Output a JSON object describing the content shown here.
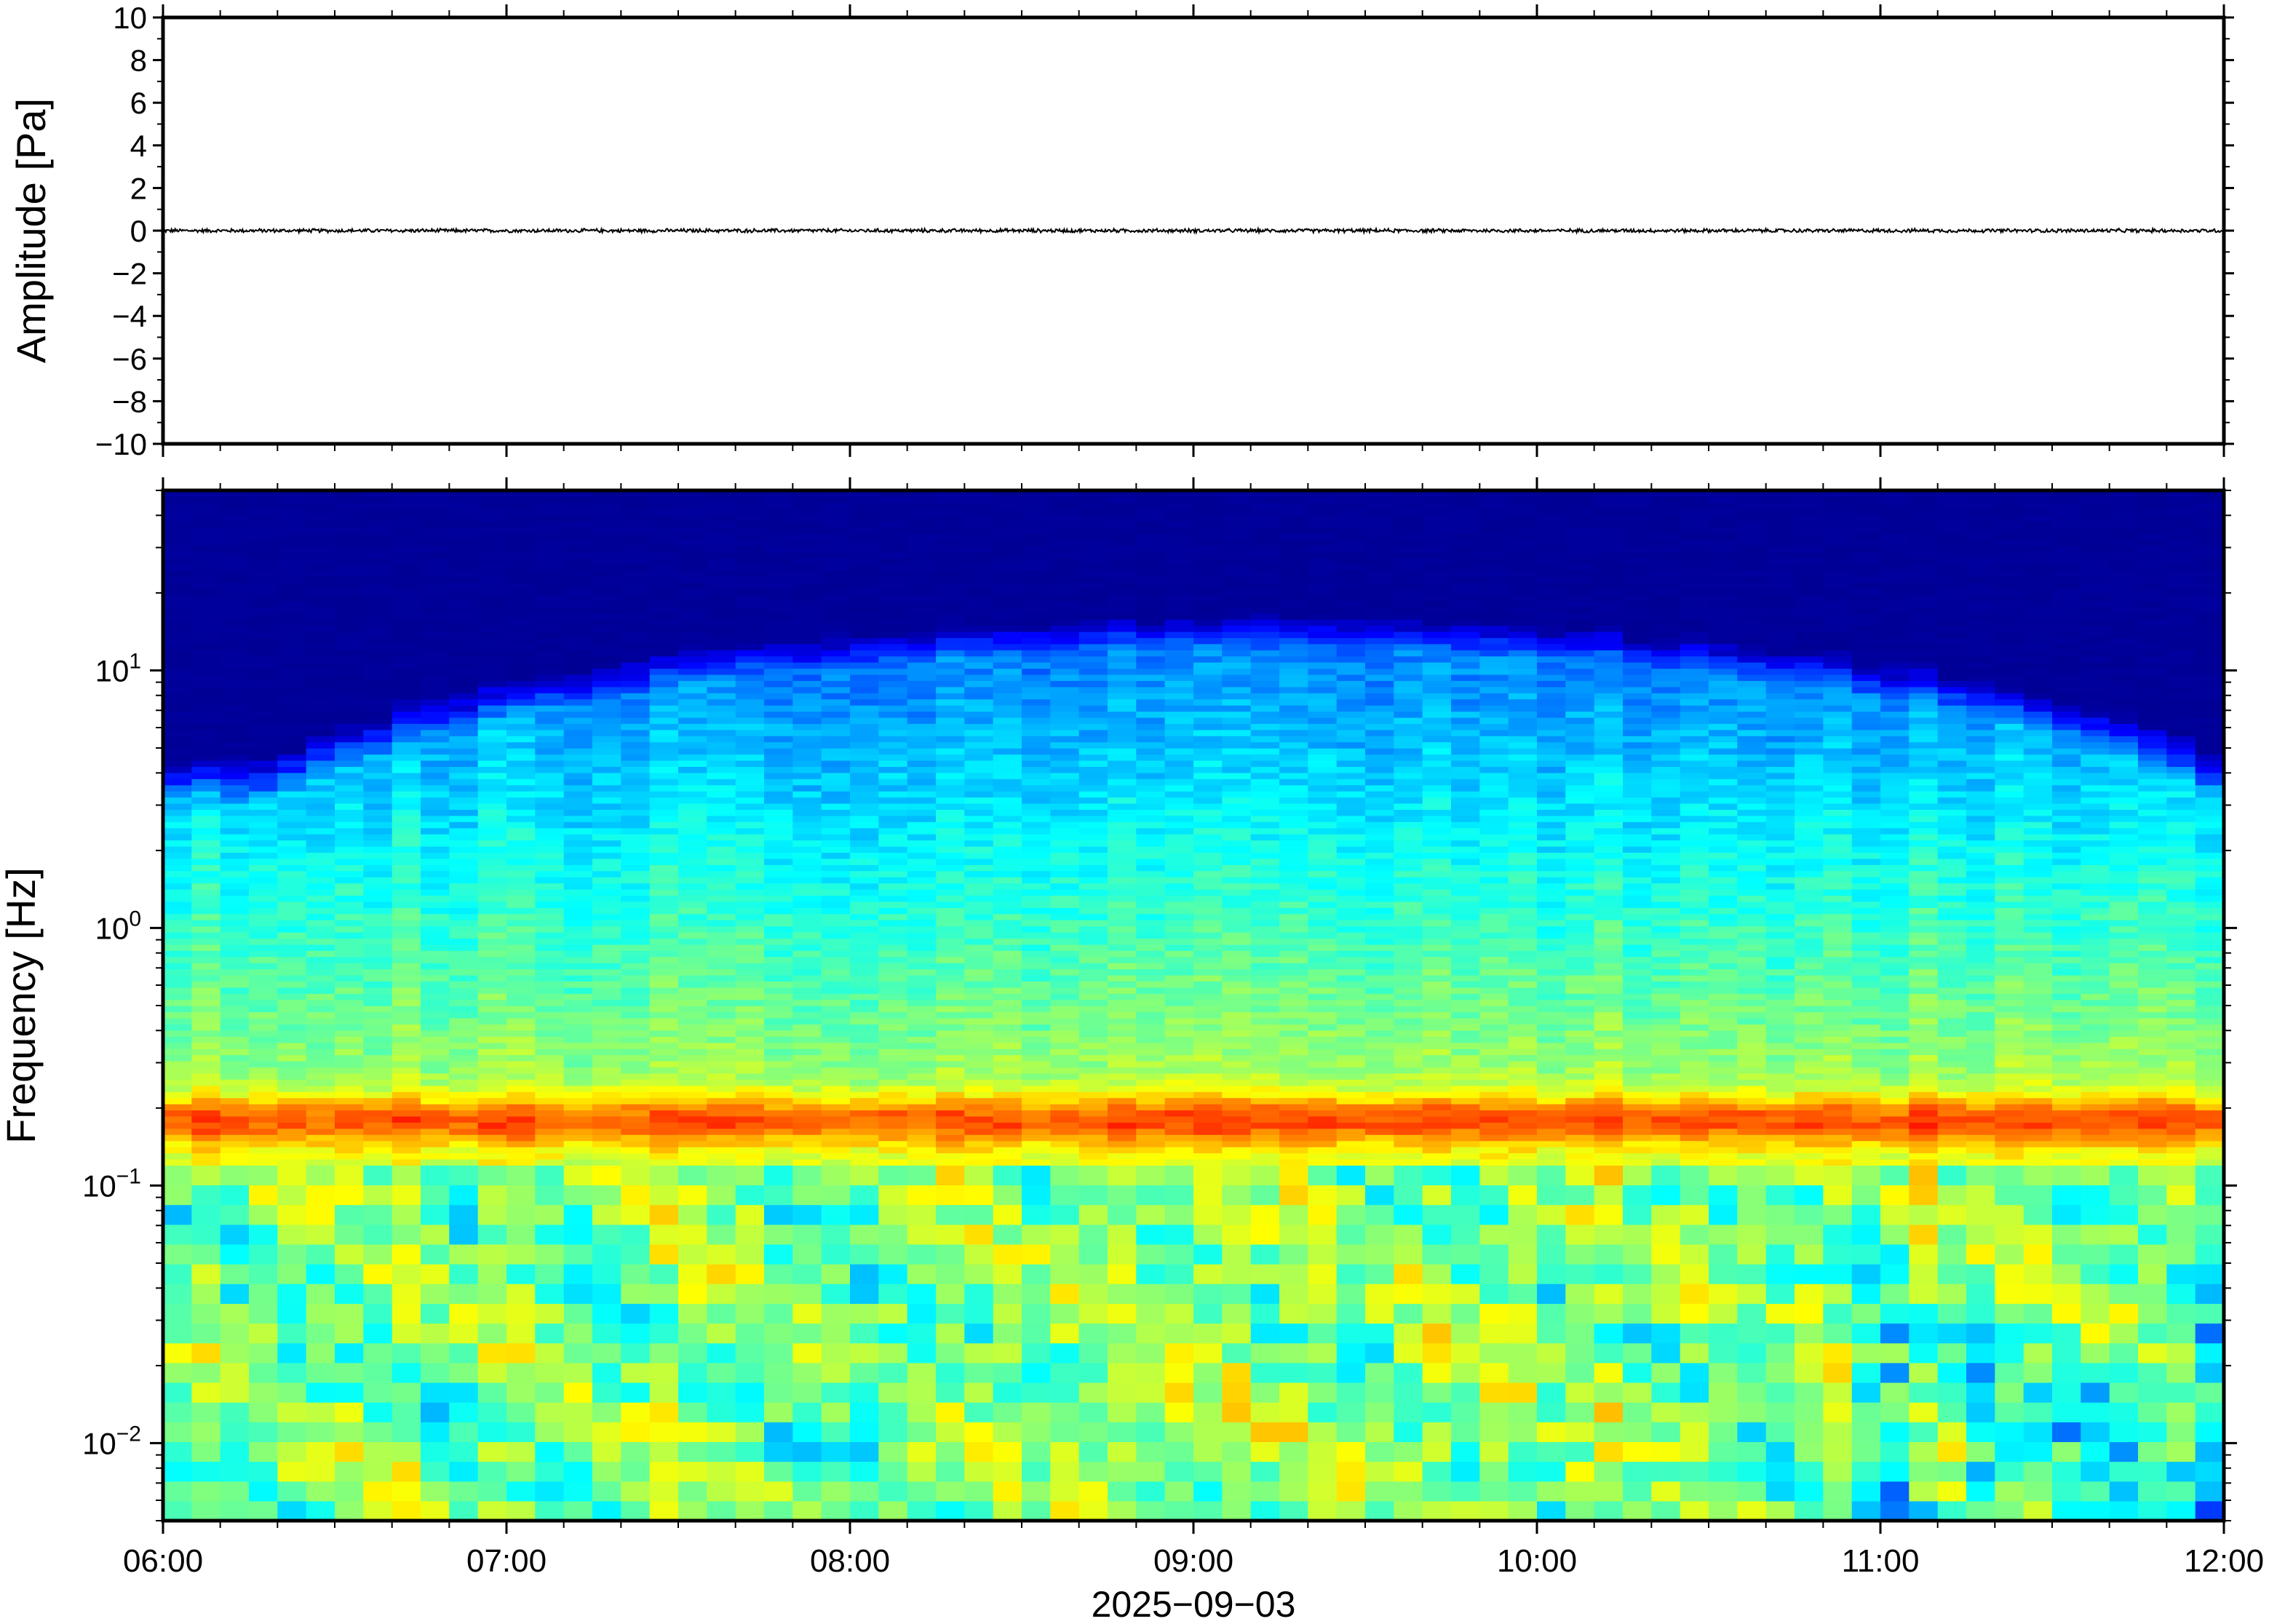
{
  "chart_data": [
    {
      "type": "line",
      "panel": "waveform",
      "ylabel": "Amplitude [Pa]",
      "ylim": [
        -10,
        10
      ],
      "y_ticks": [
        10,
        8,
        6,
        4,
        2,
        0,
        -2,
        -4,
        -6,
        -8,
        -10
      ],
      "y_tick_labels": [
        "10",
        "8",
        "6",
        "4",
        "2",
        "0",
        "−2",
        "−4",
        "−6",
        "−8",
        "−10"
      ],
      "xlim": [
        "06:00",
        "12:00"
      ],
      "grid": false,
      "series": [
        {
          "color": "#000000",
          "description_values": {
            "mean": 0,
            "peak_abs": 0.1
          }
        }
      ]
    },
    {
      "type": "heatmap",
      "panel": "spectrogram",
      "ylabel": "Frequency [Hz]",
      "yscale": "log",
      "ylim": [
        0.005,
        50
      ],
      "y_ticks": [
        10,
        1,
        0.1,
        0.01
      ],
      "y_tick_labels": [
        {
          "base": "10",
          "exp": "1"
        },
        {
          "base": "10",
          "exp": "0"
        },
        {
          "base": "10",
          "exp": "−1"
        },
        {
          "base": "10",
          "exp": "−2"
        }
      ],
      "x_ticks": [
        "06:00",
        "07:00",
        "08:00",
        "09:00",
        "10:00",
        "11:00",
        "12:00"
      ],
      "xlabel": "2025−09−03",
      "colormap": "jet",
      "features": {
        "microbarom_peak_hz": 0.18,
        "background_cutoff_hz_range": [
          3,
          12
        ]
      }
    }
  ]
}
